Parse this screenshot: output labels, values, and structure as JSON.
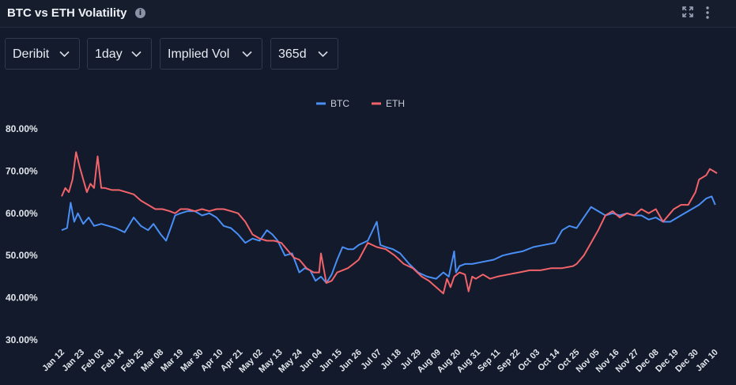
{
  "header": {
    "title": "BTC vs ETH Volatility",
    "info_glyph": "i"
  },
  "filters": [
    {
      "id": "exchange",
      "label": "Deribit"
    },
    {
      "id": "resolution",
      "label": "1day"
    },
    {
      "id": "metric",
      "label": "Implied Vol"
    },
    {
      "id": "range",
      "label": "365d"
    }
  ],
  "icons": {
    "expand": "expand-icon",
    "menu": "more-vertical-icon",
    "info": "info-icon",
    "chevron": "chevron-down-icon"
  },
  "colors": {
    "background": "#121a2b",
    "btc": "#4a8ff5",
    "eth": "#f2636a"
  },
  "chart_data": {
    "type": "line",
    "legend_position": "top-center",
    "grid": false,
    "y_unit": "%",
    "ylim": [
      30,
      80
    ],
    "y_ticks": [
      80,
      70,
      60,
      50,
      40,
      30
    ],
    "y_tick_labels": [
      "80.00%",
      "70.00%",
      "60.00%",
      "50.00%",
      "40.00%",
      "30.00%"
    ],
    "x_tick_labels": [
      "Jan 12",
      "Jan 23",
      "Feb 03",
      "Feb 14",
      "Feb 25",
      "Mar 08",
      "Mar 19",
      "Mar 30",
      "Apr 10",
      "Apr 21",
      "May 02",
      "May 13",
      "May 24",
      "Jun 04",
      "Jun 15",
      "Jun 26",
      "Jul 07",
      "Jul 18",
      "Jul 29",
      "Aug 09",
      "Aug 20",
      "Aug 31",
      "Sep 11",
      "Sep 22",
      "Oct 03",
      "Oct 14",
      "Oct 25",
      "Nov 05",
      "Nov 16",
      "Nov 27",
      "Dec 08",
      "Dec 19",
      "Dec 30",
      "Jan 10"
    ],
    "x_tick_day_index": [
      0,
      11,
      22,
      33,
      44,
      55,
      66,
      77,
      88,
      99,
      110,
      121,
      132,
      143,
      154,
      165,
      176,
      187,
      198,
      209,
      220,
      231,
      242,
      253,
      264,
      275,
      286,
      297,
      308,
      319,
      330,
      341,
      352,
      363
    ],
    "series": [
      {
        "name": "BTC",
        "day_index": [
          0,
          3,
          5,
          7,
          9,
          12,
          15,
          18,
          22,
          26,
          30,
          35,
          40,
          44,
          48,
          51,
          55,
          58,
          61,
          63,
          66,
          70,
          74,
          78,
          82,
          86,
          90,
          94,
          98,
          102,
          106,
          110,
          114,
          117,
          120,
          124,
          128,
          132,
          135,
          138,
          141,
          144,
          147,
          150,
          153,
          156,
          159,
          162,
          165,
          170,
          175,
          177,
          180,
          184,
          188,
          193,
          198,
          203,
          208,
          212,
          215,
          218,
          219,
          221,
          224,
          228,
          234,
          240,
          245,
          250,
          256,
          262,
          268,
          274,
          278,
          282,
          286,
          290,
          294,
          298,
          302,
          306,
          310,
          314,
          318,
          322,
          326,
          330,
          334,
          338,
          342,
          346,
          350,
          354,
          358,
          361,
          363
        ],
        "values": [
          56,
          56.5,
          62.5,
          58,
          60,
          57.5,
          59,
          57,
          57.5,
          57,
          56.5,
          55.5,
          59,
          57,
          56,
          57.5,
          55,
          53.5,
          57,
          59.5,
          60,
          60.5,
          60.5,
          59.5,
          60,
          59,
          57,
          56.5,
          55,
          53,
          54,
          53.5,
          56,
          55,
          53.5,
          50,
          50.5,
          46,
          47,
          46.5,
          44,
          45,
          43.5,
          45.5,
          49,
          52,
          51.5,
          51.5,
          52.5,
          53.5,
          58,
          52.5,
          52,
          51.5,
          50.5,
          48,
          46,
          45,
          44.5,
          46,
          45,
          51,
          46,
          47.5,
          48,
          48,
          48.5,
          49,
          50,
          50.5,
          51,
          52,
          52.5,
          53,
          56,
          57,
          56.5,
          59,
          61.5,
          60.5,
          59.5,
          60,
          59.5,
          60,
          59.5,
          59.5,
          58.5,
          59,
          58,
          58,
          59,
          60,
          61,
          62,
          63.5,
          64,
          62
        ]
      },
      {
        "name": "ETH",
        "day_index": [
          0,
          2,
          4,
          6,
          8,
          10,
          12,
          14,
          16,
          18,
          20,
          22,
          24,
          28,
          32,
          36,
          40,
          44,
          48,
          52,
          56,
          60,
          63,
          66,
          70,
          74,
          78,
          82,
          86,
          90,
          94,
          98,
          102,
          106,
          110,
          114,
          118,
          122,
          126,
          129,
          132,
          136,
          140,
          143,
          144,
          147,
          150,
          153,
          156,
          159,
          162,
          165,
          170,
          175,
          180,
          185,
          190,
          195,
          200,
          204,
          208,
          212,
          214,
          216,
          218,
          221,
          224,
          226,
          228,
          230,
          234,
          238,
          242,
          248,
          254,
          260,
          266,
          272,
          278,
          284,
          286,
          290,
          294,
          298,
          302,
          306,
          310,
          314,
          318,
          322,
          326,
          330,
          334,
          338,
          340,
          344,
          348,
          352,
          354,
          356,
          358,
          360,
          362,
          364
        ],
        "values": [
          64,
          66,
          65,
          68,
          74.5,
          71,
          68,
          65,
          67,
          66,
          73.5,
          66,
          66,
          65.5,
          65.5,
          65,
          64.5,
          63,
          62,
          61,
          61,
          60.5,
          60,
          61,
          61,
          60.5,
          61,
          60.5,
          61,
          61,
          60.5,
          60,
          58,
          55,
          54,
          53.5,
          53.5,
          53,
          51,
          49.5,
          49,
          47,
          46,
          46,
          50.5,
          43.5,
          44,
          46,
          46.5,
          47,
          48,
          49,
          53,
          52,
          51.5,
          50,
          48,
          47,
          45,
          44,
          42.5,
          41,
          44.5,
          42.5,
          45,
          46,
          45.5,
          41.5,
          45,
          44.5,
          45.5,
          44.5,
          45,
          45.5,
          46,
          46.5,
          46.5,
          47,
          47,
          47.5,
          48,
          50,
          53,
          56,
          59.5,
          60.5,
          59,
          60,
          59.5,
          61,
          60,
          61,
          58,
          60,
          61,
          62,
          62,
          65,
          68,
          68.5,
          69,
          70.5,
          70,
          69.5
        ]
      }
    ]
  }
}
